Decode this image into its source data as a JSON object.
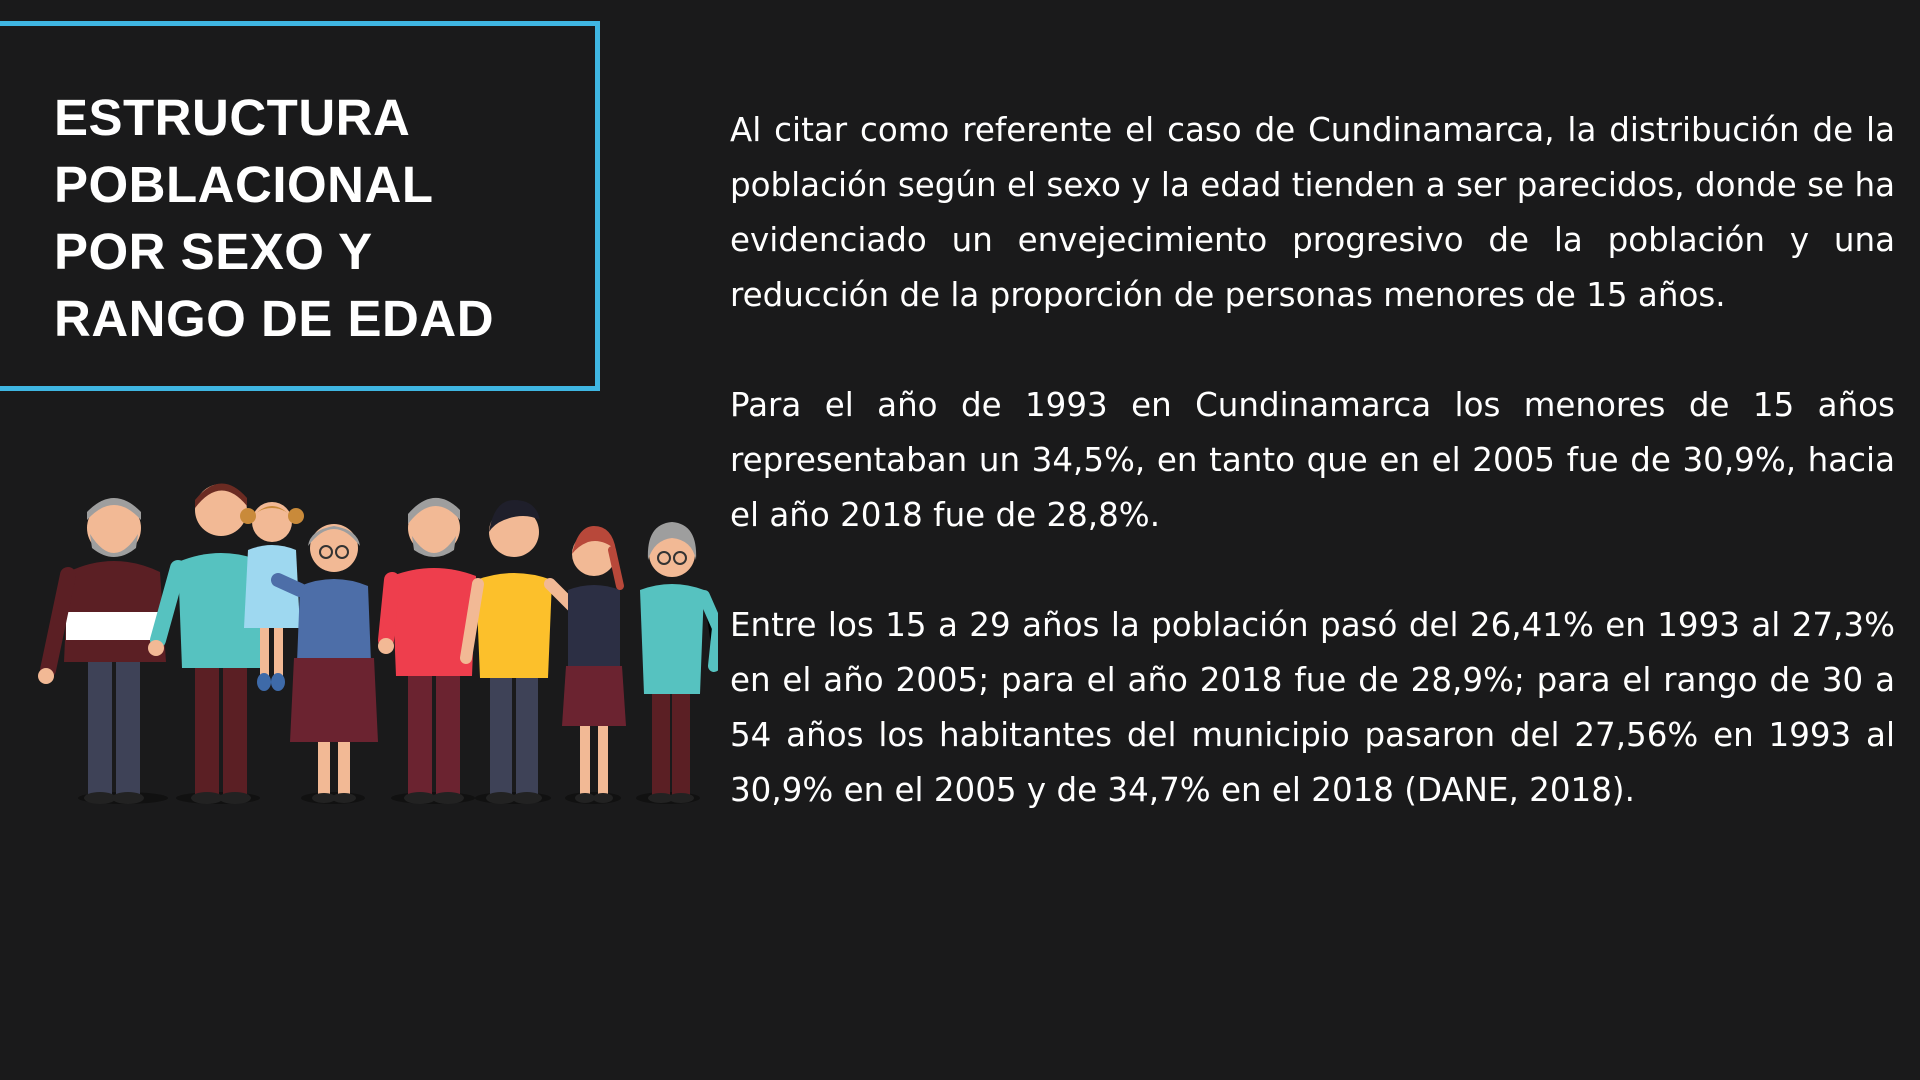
{
  "title": {
    "lines": [
      "ESTRUCTURA",
      "POBLACIONAL",
      "POR SEXO Y",
      "RANGO DE EDAD"
    ]
  },
  "paragraphs": [
    "Al citar como referente el caso de Cundinamarca, la distribución de la población según el sexo y la edad tienden a ser parecidos, donde se ha evidenciado un envejecimiento progresivo de la población y una reducción de la proporción de personas menores de 15 años.",
    "Para el año de 1993 en Cundinamarca los menores de 15 años representaban un 34,5%, en tanto que en el 2005 fue de 30,9%, hacia el año 2018 fue de 28,8%.",
    "Entre los 15 a 29 años la población pasó del 26,41% en 1993 al 27,3% en el año 2005; para el año 2018 fue de 28,9%; para el rango de 30 a 54 años los habitantes del municipio pasaron del 27,56% en 1993 al 30,9% en el 2005 y de 34,7% en el 2018 (DANE, 2018)."
  ],
  "colors": {
    "background": "#1a1a1b",
    "frame": "#3fb6e2",
    "text": "#ffffff"
  },
  "illustration": {
    "icon": "family-group-illustration"
  }
}
